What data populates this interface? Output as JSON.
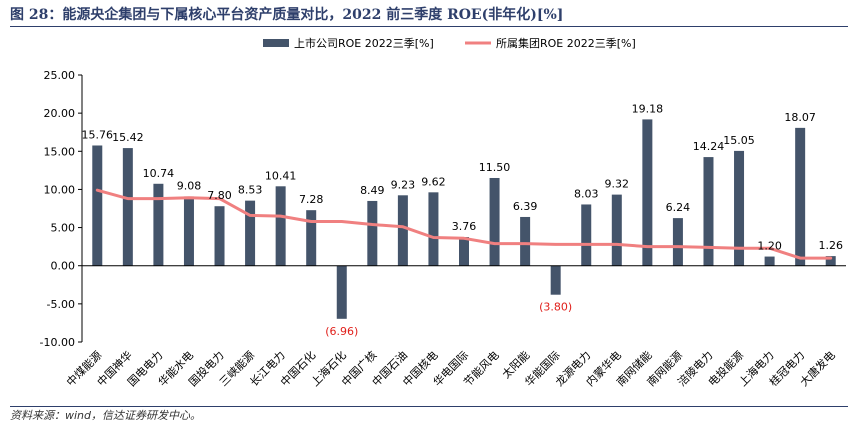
{
  "title": "图 28：能源央企集团与下属核心平台资产质量对比，2022 前三季度 ROE(非年化)[%]",
  "source": "资料来源：wind，信达证券研发中心。",
  "colors": {
    "bar": "#44546a",
    "line": "#f08080",
    "negative_label": "#e0201b",
    "axis": "#000000"
  },
  "chart_data": {
    "type": "bar",
    "categories": [
      "中煤能源",
      "中国神华",
      "国电电力",
      "华能水电",
      "国投电力",
      "三峡能源",
      "长江电力",
      "中国石化",
      "上海石化",
      "中国广核",
      "中国石油",
      "中国核电",
      "华电国际",
      "节能风电",
      "太阳能",
      "华能国际",
      "龙源电力",
      "内蒙华电",
      "南网储能",
      "南网能源",
      "涪陵电力",
      "电投能源",
      "上海电力",
      "桂冠电力",
      "大唐发电"
    ],
    "series": [
      {
        "name": "上市公司ROE 2022三季[%]",
        "type": "bar",
        "values": [
          15.76,
          15.42,
          10.74,
          9.08,
          7.8,
          8.53,
          10.41,
          7.28,
          -6.96,
          8.49,
          9.23,
          9.62,
          3.76,
          11.5,
          6.39,
          -3.8,
          8.03,
          9.32,
          19.18,
          6.24,
          14.24,
          15.05,
          1.2,
          18.07,
          1.26
        ],
        "labels": [
          "15.76",
          "15.42",
          "10.74",
          "9.08",
          "7.80",
          "8.53",
          "10.41",
          "7.28",
          "(6.96)",
          "8.49",
          "9.23",
          "9.62",
          "3.76",
          "11.50",
          "6.39",
          "(3.80)",
          "8.03",
          "9.32",
          "19.18",
          "6.24",
          "14.24",
          "15.05",
          "1.20",
          "18.07",
          "1.26"
        ]
      },
      {
        "name": "所属集团ROE 2022三季[%]",
        "type": "line",
        "values": [
          9.9,
          8.8,
          8.8,
          8.9,
          8.8,
          6.6,
          6.5,
          5.8,
          5.8,
          5.4,
          5.1,
          3.7,
          3.6,
          2.9,
          2.9,
          2.8,
          2.8,
          2.8,
          2.5,
          2.5,
          2.4,
          2.3,
          2.3,
          1.0,
          1.0
        ]
      }
    ],
    "yticks": [
      "25.00",
      "20.00",
      "15.00",
      "10.00",
      "5.00",
      "0.00",
      "-5.00",
      "-10.00"
    ],
    "ylim": [
      -10,
      25
    ],
    "grid": false,
    "legend": "top"
  }
}
